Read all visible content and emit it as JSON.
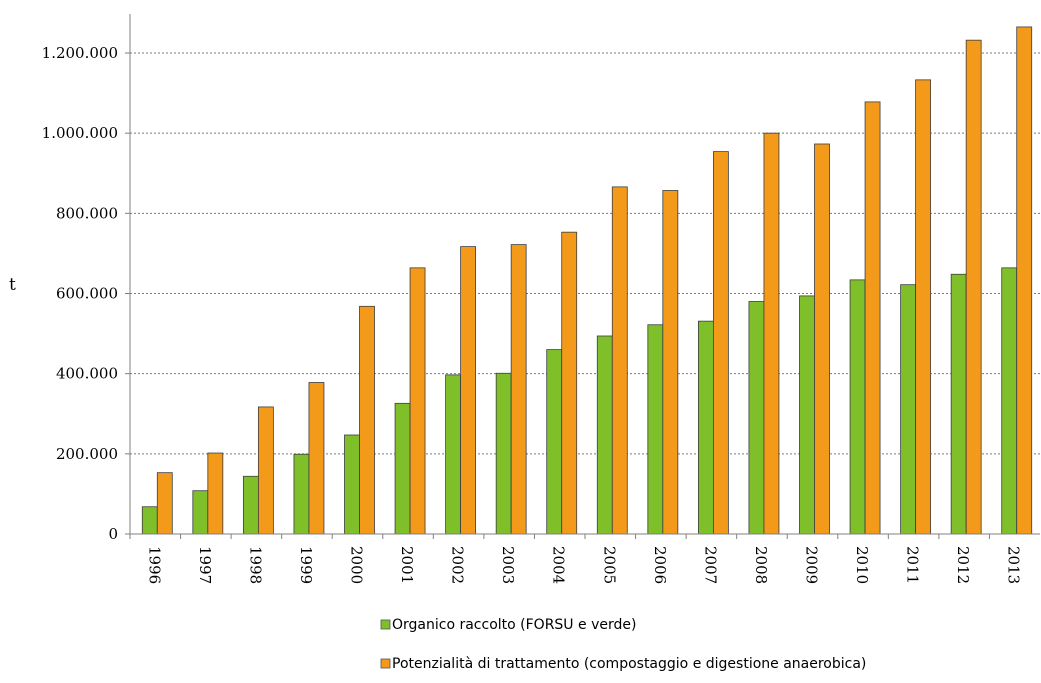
{
  "chart_data": {
    "type": "bar",
    "title": "",
    "xlabel": "",
    "ylabel": "t",
    "ylim": [
      0,
      1300000
    ],
    "y_ticks": [
      0,
      200000,
      400000,
      600000,
      800000,
      1000000,
      1200000
    ],
    "y_tick_labels": [
      "0",
      "200.000",
      "400.000",
      "600.000",
      "800.000",
      "1.000.000",
      "1.200.000"
    ],
    "grid": true,
    "legend_position": "bottom",
    "categories": [
      "1996",
      "1997",
      "1998",
      "1999",
      "2000",
      "2001",
      "2002",
      "2003",
      "2004",
      "2005",
      "2006",
      "2007",
      "2008",
      "2009",
      "2010",
      "2011",
      "2012",
      "2013"
    ],
    "series": [
      {
        "name": "Organico raccolto (FORSU e verde)",
        "color": "#7fbf2a",
        "values": [
          68000,
          108000,
          144000,
          199000,
          247000,
          326000,
          397000,
          401000,
          460000,
          494000,
          522000,
          531000,
          580000,
          594000,
          634000,
          622000,
          648000,
          664000
        ]
      },
      {
        "name": "Potenzialità di trattamento (compostaggio e digestione anaerobica)",
        "color": "#f39a1a",
        "values": [
          153000,
          202000,
          317000,
          378000,
          568000,
          664000,
          717000,
          722000,
          753000,
          866000,
          857000,
          954000,
          1000000,
          973000,
          1078000,
          1133000,
          1232000,
          1265000
        ]
      }
    ]
  }
}
